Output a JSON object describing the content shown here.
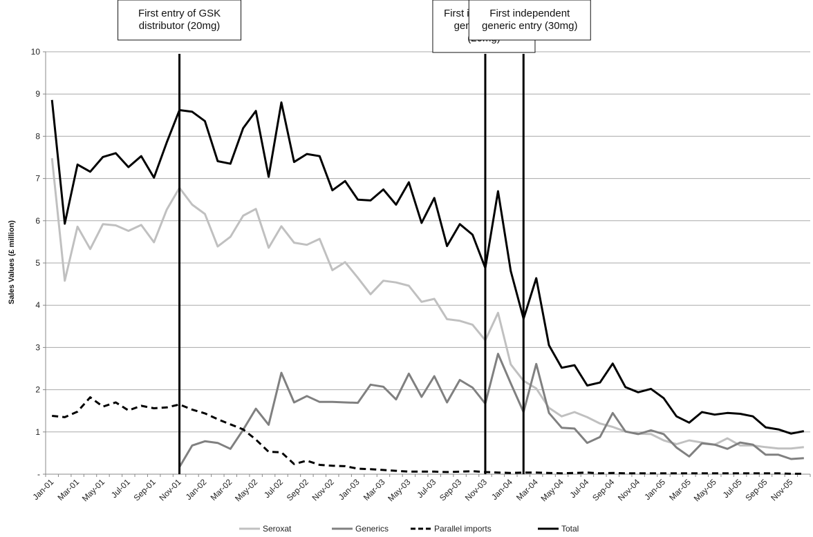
{
  "chart_data": {
    "type": "line",
    "ylabel": "Sales Values (£ million)",
    "ylim": [
      0,
      10
    ],
    "y_ticks": [
      "-",
      "1",
      "2",
      "3",
      "4",
      "5",
      "6",
      "7",
      "8",
      "9",
      "10"
    ],
    "grid": "horizontal",
    "legend_position": "bottom",
    "x_start": "2001-01",
    "x_labels": [
      "Jan-01",
      "Mar-01",
      "May-01",
      "Jul-01",
      "Sep-01",
      "Nov-01",
      "Jan-02",
      "Mar-02",
      "May-02",
      "Jul-02",
      "Sep-02",
      "Nov-02",
      "Jan-03",
      "Mar-03",
      "May-03",
      "Jul-03",
      "Sep-03",
      "Nov-03",
      "Jan-04",
      "Mar-04",
      "May-04",
      "Jul-04",
      "Sep-04",
      "Nov-04",
      "Jan-05",
      "Mar-05",
      "May-05",
      "Jul-05",
      "Sep-05",
      "Nov-05"
    ],
    "series": [
      {
        "name": "Seroxat",
        "color": "#c0c0c0",
        "dash": "solid",
        "values": [
          7.48,
          4.58,
          5.86,
          5.33,
          5.92,
          5.89,
          5.76,
          5.9,
          5.49,
          6.26,
          6.78,
          6.38,
          6.16,
          5.39,
          5.62,
          6.12,
          6.28,
          5.36,
          5.87,
          5.48,
          5.43,
          5.57,
          4.83,
          5.02,
          4.65,
          4.26,
          4.58,
          4.54,
          4.46,
          4.08,
          4.15,
          3.67,
          3.63,
          3.54,
          3.17,
          3.82,
          2.6,
          2.21,
          2.03,
          1.57,
          1.37,
          1.47,
          1.35,
          1.2,
          1.12,
          1.01,
          0.96,
          0.95,
          0.8,
          0.71,
          0.8,
          0.75,
          0.7,
          0.85,
          0.68,
          0.68,
          0.64,
          0.61,
          0.61,
          0.64
        ]
      },
      {
        "name": "Generics",
        "color": "#808080",
        "dash": "solid",
        "values": [
          null,
          null,
          null,
          null,
          null,
          null,
          null,
          null,
          null,
          null,
          0.17,
          0.68,
          0.78,
          0.74,
          0.6,
          1.05,
          1.55,
          1.17,
          2.4,
          1.7,
          1.85,
          1.71,
          1.71,
          1.7,
          1.69,
          2.12,
          2.07,
          1.77,
          2.38,
          1.83,
          2.32,
          1.7,
          2.23,
          2.05,
          1.67,
          2.85,
          2.15,
          1.47,
          2.61,
          1.45,
          1.1,
          1.08,
          0.74,
          0.88,
          1.45,
          1.01,
          0.95,
          1.04,
          0.95,
          0.63,
          0.42,
          0.73,
          0.7,
          0.6,
          0.75,
          0.7,
          0.46,
          0.46,
          0.36,
          0.38
        ]
      },
      {
        "name": "Parallel imports",
        "color": "#000000",
        "dash": "dashed",
        "values": [
          1.38,
          1.35,
          1.48,
          1.82,
          1.6,
          1.7,
          1.51,
          1.62,
          1.56,
          1.58,
          1.65,
          1.53,
          1.44,
          1.3,
          1.18,
          1.06,
          0.82,
          0.53,
          0.52,
          0.24,
          0.32,
          0.22,
          0.2,
          0.19,
          0.13,
          0.12,
          0.1,
          0.08,
          0.06,
          0.06,
          0.06,
          0.05,
          0.06,
          0.07,
          0.05,
          0.04,
          0.03,
          0.04,
          0.04,
          0.03,
          0.02,
          0.03,
          0.04,
          0.02,
          0.03,
          0.02,
          0.02,
          0.02,
          0.02,
          0.02,
          0.02,
          0.02,
          0.02,
          0.02,
          0.02,
          0.02,
          0.02,
          0.02,
          0.01,
          0.01
        ]
      },
      {
        "name": "Total",
        "color": "#000000",
        "dash": "solid",
        "values": [
          8.86,
          5.93,
          7.33,
          7.16,
          7.51,
          7.6,
          7.27,
          7.53,
          7.02,
          7.85,
          8.62,
          8.58,
          8.36,
          7.41,
          7.35,
          8.19,
          8.6,
          7.04,
          8.8,
          7.39,
          7.58,
          7.53,
          6.72,
          6.94,
          6.5,
          6.48,
          6.74,
          6.38,
          6.91,
          5.95,
          6.54,
          5.4,
          5.92,
          5.67,
          4.88,
          6.7,
          4.81,
          3.68,
          4.64,
          3.05,
          2.52,
          2.58,
          2.1,
          2.17,
          2.62,
          2.06,
          1.94,
          2.02,
          1.8,
          1.37,
          1.22,
          1.47,
          1.41,
          1.45,
          1.43,
          1.37,
          1.11,
          1.06,
          0.96,
          1.02
        ]
      }
    ],
    "annotations": [
      {
        "lines": [
          "First entry of GSK",
          "distributor (20mg)"
        ],
        "at": "2001-11"
      },
      {
        "lines": [
          "First independent",
          "generic entry",
          "(20mg)"
        ],
        "at": "2003-11"
      },
      {
        "lines": [
          "First independent",
          "generic entry (30mg)"
        ],
        "at": "2004-02"
      }
    ]
  }
}
